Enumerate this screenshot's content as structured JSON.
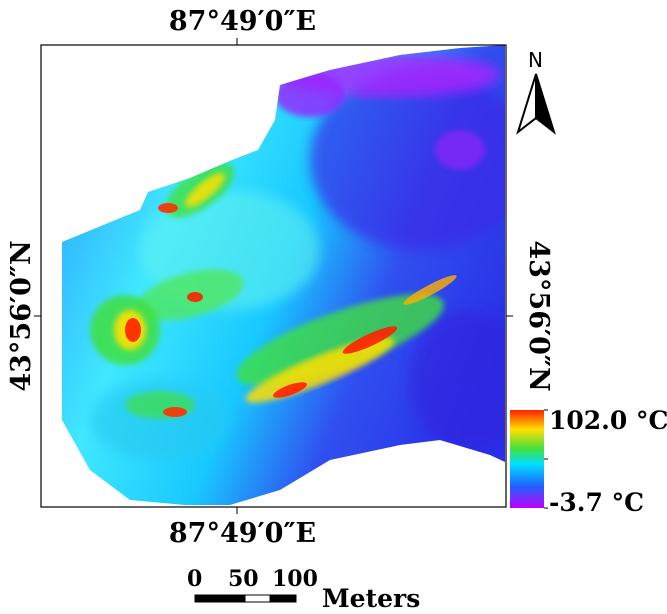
{
  "map": {
    "coord_top": "87°49′0″E",
    "coord_bottom": "87°49′0″E",
    "coord_left": "43°56′0″N",
    "coord_right": "43°56′0″N"
  },
  "legend": {
    "max_label": "102.0 °C",
    "min_label": "-3.7 °C",
    "colors": [
      "#ff2000",
      "#ffe000",
      "#40e040",
      "#00e0ff",
      "#2060ff",
      "#c000ff"
    ]
  },
  "north_arrow": {
    "letter": "N"
  },
  "scale_bar": {
    "ticks": [
      "0",
      "50",
      "100"
    ],
    "unit": "Meters"
  }
}
